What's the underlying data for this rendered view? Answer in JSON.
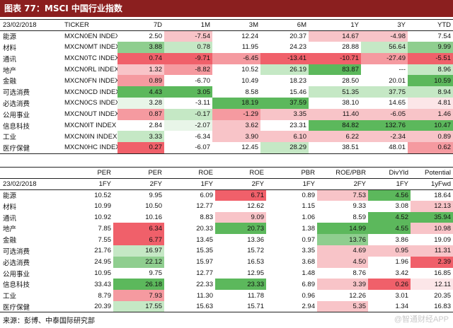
{
  "title": "图表 77：MSCI 中国行业指数",
  "table1": {
    "date": "23/02/2018",
    "headers": [
      "TICKER",
      "7D",
      "1M",
      "3M",
      "6M",
      "1Y",
      "3Y",
      "YTD"
    ],
    "rows": [
      {
        "name": "能源",
        "ticker": "MXCN0EN INDEX",
        "v": [
          [
            "2.50",
            ""
          ],
          [
            "-7.54",
            "r1"
          ],
          [
            "12.24",
            ""
          ],
          [
            "20.37",
            ""
          ],
          [
            "14.67",
            "r1"
          ],
          [
            "-4.98",
            "r1"
          ],
          [
            "7.54",
            ""
          ]
        ]
      },
      {
        "name": "材料",
        "ticker": "MXCN0MT INDEX",
        "v": [
          [
            "3.88",
            "g2"
          ],
          [
            "0.78",
            "g1"
          ],
          [
            "11.95",
            ""
          ],
          [
            "24.23",
            ""
          ],
          [
            "28.88",
            ""
          ],
          [
            "56.64",
            "g1"
          ],
          [
            "9.99",
            "g2"
          ]
        ]
      },
      {
        "name": "通讯",
        "ticker": "MXCN0TC INDEX",
        "v": [
          [
            "0.74",
            "r3"
          ],
          [
            "-9.71",
            "r3"
          ],
          [
            "-6.45",
            "r2"
          ],
          [
            "-13.41",
            "r3"
          ],
          [
            "-10.71",
            "r3"
          ],
          [
            "-27.49",
            "r2"
          ],
          [
            "-5.51",
            "r3"
          ]
        ]
      },
      {
        "name": "地产",
        "ticker": "MXCN0RL INDEX",
        "v": [
          [
            "1.32",
            "r1"
          ],
          [
            "-8.82",
            "r2"
          ],
          [
            "10.52",
            ""
          ],
          [
            "26.19",
            "g1"
          ],
          [
            "83.87",
            "g3"
          ],
          [
            "---",
            ""
          ],
          [
            "8.96",
            "g1"
          ]
        ]
      },
      {
        "name": "金融",
        "ticker": "MXCN0FN INDEX",
        "v": [
          [
            "0.89",
            "r2"
          ],
          [
            "-6.70",
            ""
          ],
          [
            "10.49",
            ""
          ],
          [
            "18.23",
            ""
          ],
          [
            "28.50",
            ""
          ],
          [
            "20.01",
            ""
          ],
          [
            "10.59",
            "g3"
          ]
        ]
      },
      {
        "name": "可选消费",
        "ticker": "MXCN0CD INDEX",
        "v": [
          [
            "4.43",
            "g3"
          ],
          [
            "3.05",
            "g3"
          ],
          [
            "8.58",
            ""
          ],
          [
            "15.46",
            ""
          ],
          [
            "51.35",
            "g1"
          ],
          [
            "37.75",
            "g1"
          ],
          [
            "8.94",
            "g1"
          ]
        ]
      },
      {
        "name": "必选消费",
        "ticker": "MXCN0CS INDEX",
        "v": [
          [
            "3.28",
            "g0"
          ],
          [
            "-3.11",
            ""
          ],
          [
            "18.19",
            "g3"
          ],
          [
            "37.59",
            "g3"
          ],
          [
            "38.10",
            ""
          ],
          [
            "14.65",
            ""
          ],
          [
            "4.81",
            "r0"
          ]
        ]
      },
      {
        "name": "公用事业",
        "ticker": "MXCN0UT INDEX",
        "v": [
          [
            "0.87",
            "r2"
          ],
          [
            "-0.17",
            "g1"
          ],
          [
            "-1.29",
            "r2"
          ],
          [
            "3.35",
            "r1"
          ],
          [
            "11.40",
            "r1"
          ],
          [
            "-6.05",
            "r1"
          ],
          [
            "1.46",
            "r1"
          ]
        ]
      },
      {
        "name": "信息科技",
        "ticker": "MXCN0IT INDEX",
        "v": [
          [
            "2.84",
            ""
          ],
          [
            "-2.07",
            "g0"
          ],
          [
            "3.62",
            "r1"
          ],
          [
            "23.31",
            ""
          ],
          [
            "84.82",
            "g3"
          ],
          [
            "132.76",
            "g3"
          ],
          [
            "10.47",
            "g3"
          ]
        ]
      },
      {
        "name": "工业",
        "ticker": "MXCN0IN INDEX",
        "v": [
          [
            "3.33",
            "g1"
          ],
          [
            "-6.34",
            ""
          ],
          [
            "3.90",
            "r1"
          ],
          [
            "6.10",
            "r1"
          ],
          [
            "6.22",
            "r1"
          ],
          [
            "-2.34",
            "r1"
          ],
          [
            "0.89",
            "r1"
          ]
        ]
      },
      {
        "name": "医疗保健",
        "ticker": "MXCN0HC INDEX",
        "v": [
          [
            "0.27",
            "r3"
          ],
          [
            "-6.07",
            ""
          ],
          [
            "12.45",
            ""
          ],
          [
            "28.29",
            "g1"
          ],
          [
            "38.51",
            ""
          ],
          [
            "48.01",
            ""
          ],
          [
            "0.62",
            "r2"
          ]
        ]
      }
    ]
  },
  "table2": {
    "date": "23/02/2018",
    "headers": [
      "PER",
      "PER",
      "ROE",
      "ROE",
      "PBR",
      "ROE/PBR",
      "DivYld",
      "Potential"
    ],
    "subheaders": [
      "1FY",
      "2FY",
      "1FY",
      "2FY",
      "1FY",
      "2FY",
      "1FY",
      "1yFwd"
    ],
    "rows": [
      {
        "name": "能源",
        "v": [
          [
            "10.52",
            ""
          ],
          [
            "9.95",
            ""
          ],
          [
            "6.09",
            ""
          ],
          [
            "6.71",
            "r3"
          ],
          [
            "0.89",
            ""
          ],
          [
            "7.53",
            "r1"
          ],
          [
            "4.56",
            "g3"
          ],
          [
            "18.64",
            ""
          ]
        ]
      },
      {
        "name": "材料",
        "v": [
          [
            "10.99",
            ""
          ],
          [
            "10.50",
            ""
          ],
          [
            "12.77",
            ""
          ],
          [
            "12.62",
            ""
          ],
          [
            "1.15",
            ""
          ],
          [
            "9.33",
            ""
          ],
          [
            "3.08",
            ""
          ],
          [
            "12.13",
            "r1"
          ]
        ]
      },
      {
        "name": "通讯",
        "v": [
          [
            "10.92",
            ""
          ],
          [
            "10.16",
            ""
          ],
          [
            "8.83",
            ""
          ],
          [
            "9.09",
            "r1"
          ],
          [
            "1.06",
            ""
          ],
          [
            "8.59",
            ""
          ],
          [
            "4.52",
            "g3"
          ],
          [
            "35.94",
            "g3"
          ]
        ]
      },
      {
        "name": "地产",
        "v": [
          [
            "7.85",
            ""
          ],
          [
            "6.34",
            "r3"
          ],
          [
            "20.33",
            ""
          ],
          [
            "20.73",
            "g3"
          ],
          [
            "1.38",
            ""
          ],
          [
            "14.99",
            "g3"
          ],
          [
            "4.55",
            "g3"
          ],
          [
            "10.98",
            "r1"
          ]
        ]
      },
      {
        "name": "金融",
        "v": [
          [
            "7.55",
            ""
          ],
          [
            "6.77",
            "r3"
          ],
          [
            "13.45",
            ""
          ],
          [
            "13.36",
            ""
          ],
          [
            "0.97",
            ""
          ],
          [
            "13.76",
            "g2"
          ],
          [
            "3.86",
            ""
          ],
          [
            "19.09",
            ""
          ]
        ]
      },
      {
        "name": "可选消费",
        "v": [
          [
            "21.76",
            ""
          ],
          [
            "16.97",
            "g1"
          ],
          [
            "15.35",
            ""
          ],
          [
            "15.72",
            ""
          ],
          [
            "3.35",
            ""
          ],
          [
            "4.69",
            "r1"
          ],
          [
            "0.95",
            "r1"
          ],
          [
            "11.31",
            "r1"
          ]
        ]
      },
      {
        "name": "必选消费",
        "v": [
          [
            "24.95",
            ""
          ],
          [
            "22.12",
            "g2"
          ],
          [
            "15.97",
            ""
          ],
          [
            "16.53",
            ""
          ],
          [
            "3.68",
            ""
          ],
          [
            "4.50",
            "r1"
          ],
          [
            "1.96",
            ""
          ],
          [
            "2.39",
            "r3"
          ]
        ]
      },
      {
        "name": "公用事业",
        "v": [
          [
            "10.95",
            ""
          ],
          [
            "9.75",
            ""
          ],
          [
            "12.77",
            ""
          ],
          [
            "12.95",
            ""
          ],
          [
            "1.48",
            ""
          ],
          [
            "8.76",
            ""
          ],
          [
            "3.42",
            ""
          ],
          [
            "16.85",
            ""
          ]
        ]
      },
      {
        "name": "信息科技",
        "v": [
          [
            "33.43",
            ""
          ],
          [
            "26.18",
            "g3"
          ],
          [
            "22.33",
            ""
          ],
          [
            "23.33",
            "g3"
          ],
          [
            "6.89",
            ""
          ],
          [
            "3.39",
            "r1"
          ],
          [
            "0.26",
            "r3"
          ],
          [
            "12.11",
            "r0"
          ]
        ]
      },
      {
        "name": "工业",
        "v": [
          [
            "8.79",
            ""
          ],
          [
            "7.93",
            "r2"
          ],
          [
            "11.30",
            ""
          ],
          [
            "11.78",
            ""
          ],
          [
            "0.96",
            ""
          ],
          [
            "12.26",
            ""
          ],
          [
            "3.01",
            ""
          ],
          [
            "20.35",
            ""
          ]
        ]
      },
      {
        "name": "医疗保健",
        "v": [
          [
            "20.39",
            ""
          ],
          [
            "17.55",
            "g1"
          ],
          [
            "15.63",
            ""
          ],
          [
            "15.71",
            ""
          ],
          [
            "2.94",
            ""
          ],
          [
            "5.35",
            "r1"
          ],
          [
            "1.34",
            ""
          ],
          [
            "16.83",
            ""
          ]
        ]
      }
    ]
  },
  "footer": "来源：彭博、中泰国际研究部",
  "watermark": "@智通财经APP"
}
